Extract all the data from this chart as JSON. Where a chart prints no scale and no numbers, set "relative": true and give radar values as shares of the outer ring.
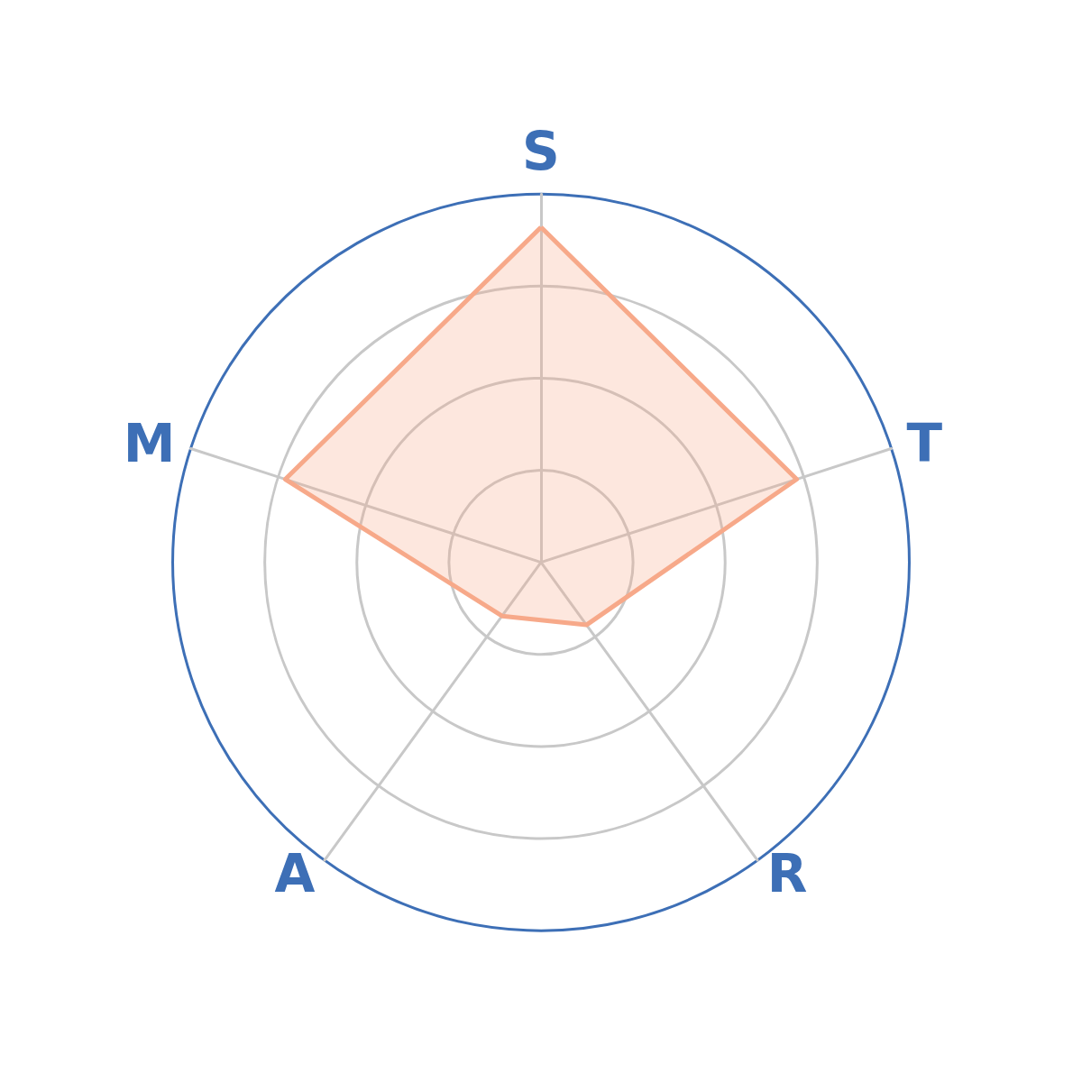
{
  "chart_data": {
    "type": "radar",
    "relative": true,
    "categories": [
      "S",
      "T",
      "R",
      "A",
      "M"
    ],
    "series": [
      {
        "color": "#f7a98a",
        "values": [
          0.91,
          0.73,
          0.21,
          0.18,
          0.73
        ]
      }
    ],
    "grid": true,
    "marker": "none",
    "line_style": "solid"
  }
}
